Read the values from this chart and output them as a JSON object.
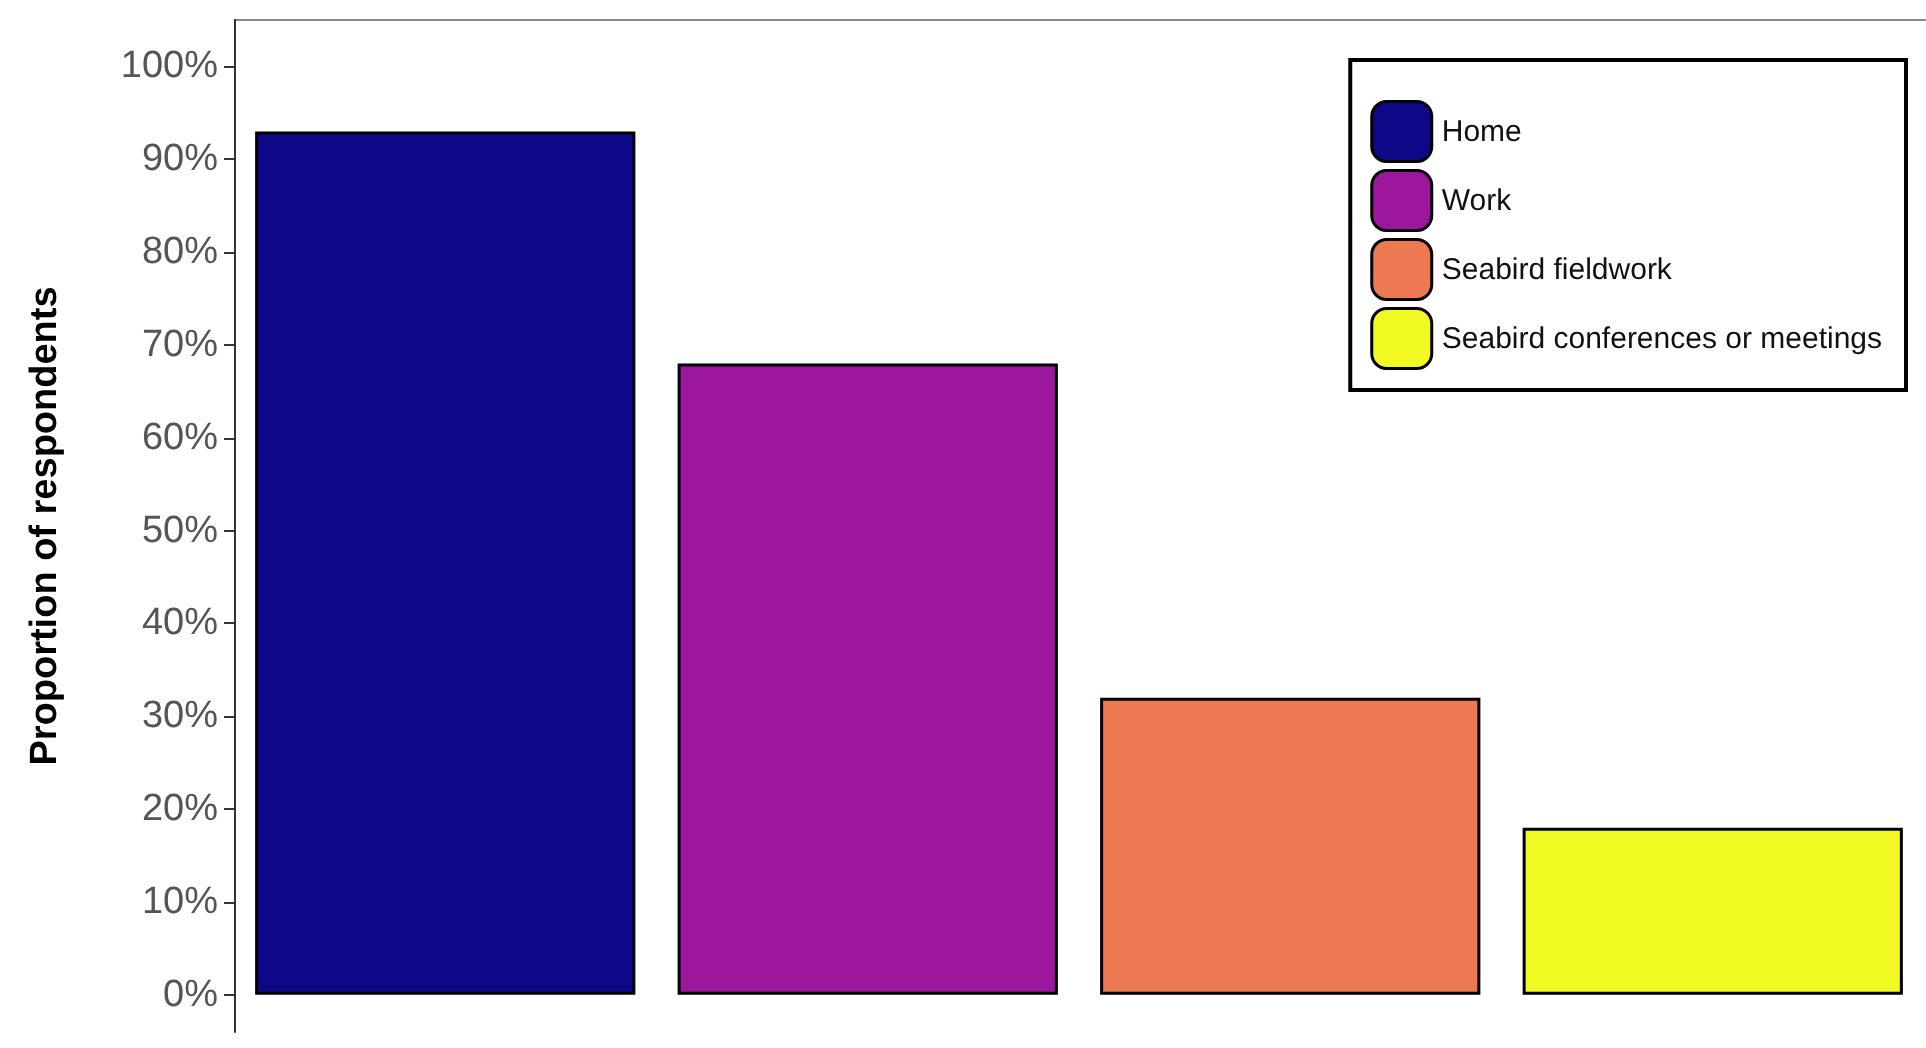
{
  "chart_data": {
    "type": "bar",
    "ylabel": "Proportion of respondents",
    "categories": [
      null,
      null,
      null,
      null
    ],
    "series": [
      {
        "name": "Home",
        "color": "#0d0887",
        "values": [
          93,
          null,
          null,
          null
        ]
      },
      {
        "name": "Work",
        "color": "#9c179e",
        "values": [
          null,
          68,
          null,
          null
        ]
      },
      {
        "name": "Seabird fieldwork",
        "color": "#ed7953",
        "values": [
          null,
          null,
          32,
          null
        ]
      },
      {
        "name": "Seabird conferences or meetings",
        "color": "#f0f921",
        "values": [
          null,
          null,
          null,
          18
        ]
      }
    ],
    "ylim": [
      -4,
      105
    ],
    "yticks": [
      {
        "value": 0,
        "label": "0%"
      },
      {
        "value": 10,
        "label": "10%"
      },
      {
        "value": 20,
        "label": "20%"
      },
      {
        "value": 30,
        "label": "30%"
      },
      {
        "value": 40,
        "label": "40%"
      },
      {
        "value": 50,
        "label": "50%"
      },
      {
        "value": 60,
        "label": "60%"
      },
      {
        "value": 70,
        "label": "70%"
      },
      {
        "value": 80,
        "label": "80%"
      },
      {
        "value": 90,
        "label": "90%"
      },
      {
        "value": 100,
        "label": "100%"
      }
    ],
    "grid": false,
    "legend": "top right"
  }
}
